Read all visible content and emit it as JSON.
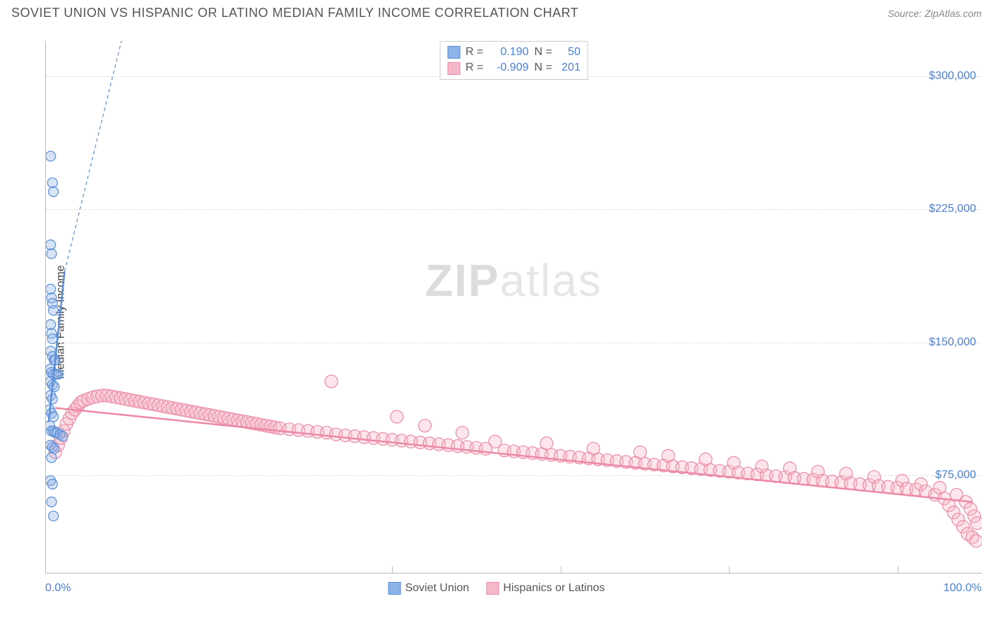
{
  "header": {
    "title": "SOVIET UNION VS HISPANIC OR LATINO MEDIAN FAMILY INCOME CORRELATION CHART",
    "source": "Source: ZipAtlas.com"
  },
  "watermark": {
    "zip": "ZIP",
    "atlas": "atlas"
  },
  "chart": {
    "type": "scatter",
    "ylabel": "Median Family Income",
    "background_color": "#ffffff",
    "grid_color": "#dddddd",
    "axis_color": "#bbbbbb",
    "tick_color": "#4a7fd8",
    "label_color": "#444444",
    "title_color": "#555555",
    "xlim": [
      0,
      100
    ],
    "ylim": [
      20000,
      320000
    ],
    "yticks": [
      75000,
      150000,
      225000,
      300000
    ],
    "ytick_labels": [
      "$75,000",
      "$150,000",
      "$225,000",
      "$300,000"
    ],
    "xticks": [
      0,
      100
    ],
    "xtick_labels": [
      "0.0%",
      "100.0%"
    ],
    "xgrid_positions": [
      37,
      55,
      73,
      91
    ],
    "marker_radius": 9,
    "marker_radius_small": 7,
    "marker_fill_opacity": 0.35,
    "marker_stroke_width": 1.2,
    "trend_line_width": 2.5,
    "trend_dash": "5,4",
    "series": [
      {
        "id": "soviet",
        "label": "Soviet Union",
        "color_fill": "#8db3e8",
        "color_stroke": "#5b8fd6",
        "R": "0.190",
        "N": "50",
        "trend_solid": {
          "x1": 0.3,
          "y1": 105000,
          "x2": 2.0,
          "y2": 190000
        },
        "trend_dash": {
          "x1": 2.0,
          "y1": 190000,
          "x2": 9.0,
          "y2": 340000
        },
        "points": [
          [
            0.5,
            255000
          ],
          [
            0.7,
            240000
          ],
          [
            0.8,
            235000
          ],
          [
            0.5,
            205000
          ],
          [
            0.6,
            200000
          ],
          [
            0.5,
            180000
          ],
          [
            0.6,
            175000
          ],
          [
            0.7,
            172000
          ],
          [
            0.8,
            168000
          ],
          [
            0.5,
            160000
          ],
          [
            0.6,
            155000
          ],
          [
            0.7,
            152000
          ],
          [
            0.5,
            145000
          ],
          [
            0.7,
            142000
          ],
          [
            0.9,
            140000
          ],
          [
            1.0,
            140000
          ],
          [
            0.5,
            135000
          ],
          [
            0.6,
            133000
          ],
          [
            0.8,
            132000
          ],
          [
            1.1,
            132000
          ],
          [
            1.3,
            132000
          ],
          [
            0.5,
            128000
          ],
          [
            0.7,
            126000
          ],
          [
            0.9,
            125000
          ],
          [
            0.5,
            120000
          ],
          [
            0.7,
            118000
          ],
          [
            0.4,
            112000
          ],
          [
            0.6,
            110000
          ],
          [
            0.8,
            108000
          ],
          [
            0.4,
            103000
          ],
          [
            0.6,
            100000
          ],
          [
            0.8,
            100000
          ],
          [
            1.0,
            99000
          ],
          [
            1.2,
            99000
          ],
          [
            1.5,
            98000
          ],
          [
            1.8,
            97000
          ],
          [
            0.5,
            92000
          ],
          [
            0.7,
            91000
          ],
          [
            0.9,
            90000
          ],
          [
            0.6,
            85000
          ],
          [
            0.5,
            72000
          ],
          [
            0.7,
            70000
          ],
          [
            0.6,
            60000
          ],
          [
            0.8,
            52000
          ]
        ]
      },
      {
        "id": "hispanic",
        "label": "Hispanics or Latinos",
        "color_fill": "#f5b8c8",
        "color_stroke": "#ec8aa6",
        "R": "-0.909",
        "N": "201",
        "trend_solid": {
          "x1": 1,
          "y1": 113000,
          "x2": 99,
          "y2": 60000
        },
        "points": [
          [
            1.0,
            88000
          ],
          [
            1.3,
            92000
          ],
          [
            1.6,
            96000
          ],
          [
            1.9,
            100000
          ],
          [
            2.2,
            104000
          ],
          [
            2.5,
            107000
          ],
          [
            2.8,
            110000
          ],
          [
            3.1,
            112000
          ],
          [
            3.4,
            114000
          ],
          [
            3.7,
            116000
          ],
          [
            4.0,
            117000
          ],
          [
            4.5,
            118000
          ],
          [
            5.0,
            119000
          ],
          [
            5.5,
            119500
          ],
          [
            6.0,
            120000
          ],
          [
            6.5,
            120000
          ],
          [
            7.0,
            119500
          ],
          [
            7.5,
            119000
          ],
          [
            8.0,
            118500
          ],
          [
            8.5,
            118000
          ],
          [
            9.0,
            117500
          ],
          [
            9.5,
            117000
          ],
          [
            10.0,
            116500
          ],
          [
            10.5,
            116000
          ],
          [
            11.0,
            115500
          ],
          [
            11.5,
            115000
          ],
          [
            12.0,
            114500
          ],
          [
            12.5,
            114000
          ],
          [
            13.0,
            113500
          ],
          [
            13.5,
            113000
          ],
          [
            14.0,
            112500
          ],
          [
            14.5,
            112000
          ],
          [
            15.0,
            111500
          ],
          [
            15.5,
            111000
          ],
          [
            16.0,
            110500
          ],
          [
            16.5,
            110000
          ],
          [
            17.0,
            109500
          ],
          [
            17.5,
            109000
          ],
          [
            18.0,
            108500
          ],
          [
            18.5,
            108000
          ],
          [
            19.0,
            107500
          ],
          [
            19.5,
            107000
          ],
          [
            20.0,
            106500
          ],
          [
            20.5,
            106000
          ],
          [
            21.0,
            105500
          ],
          [
            21.5,
            105000
          ],
          [
            22.0,
            104500
          ],
          [
            22.5,
            104000
          ],
          [
            23.0,
            103500
          ],
          [
            23.5,
            103000
          ],
          [
            24.0,
            102500
          ],
          [
            24.5,
            102000
          ],
          [
            25.0,
            101500
          ],
          [
            26.0,
            101000
          ],
          [
            27.0,
            100500
          ],
          [
            28.0,
            100000
          ],
          [
            29.0,
            99500
          ],
          [
            30.0,
            99000
          ],
          [
            30.5,
            128000
          ],
          [
            31.0,
            98000
          ],
          [
            32.0,
            97500
          ],
          [
            33.0,
            97000
          ],
          [
            34.0,
            96500
          ],
          [
            35.0,
            96000
          ],
          [
            36.0,
            95500
          ],
          [
            37.0,
            95000
          ],
          [
            37.5,
            108000
          ],
          [
            38.0,
            94500
          ],
          [
            39.0,
            94000
          ],
          [
            40.0,
            93500
          ],
          [
            40.5,
            103000
          ],
          [
            41.0,
            93000
          ],
          [
            42.0,
            92500
          ],
          [
            43.0,
            92000
          ],
          [
            44.0,
            91500
          ],
          [
            44.5,
            99000
          ],
          [
            45.0,
            91000
          ],
          [
            46.0,
            90500
          ],
          [
            47.0,
            90000
          ],
          [
            48.0,
            94000
          ],
          [
            49.0,
            89000
          ],
          [
            50.0,
            88500
          ],
          [
            51.0,
            88000
          ],
          [
            52.0,
            87500
          ],
          [
            53.0,
            87000
          ],
          [
            53.5,
            93000
          ],
          [
            54.0,
            86500
          ],
          [
            55.0,
            86000
          ],
          [
            56.0,
            85500
          ],
          [
            57.0,
            85000
          ],
          [
            58.0,
            84500
          ],
          [
            58.5,
            90000
          ],
          [
            59.0,
            84000
          ],
          [
            60.0,
            83500
          ],
          [
            61.0,
            83000
          ],
          [
            62.0,
            82500
          ],
          [
            63.0,
            82000
          ],
          [
            63.5,
            88000
          ],
          [
            64.0,
            81500
          ],
          [
            65.0,
            81000
          ],
          [
            66.0,
            80500
          ],
          [
            66.5,
            86000
          ],
          [
            67.0,
            80000
          ],
          [
            68.0,
            79500
          ],
          [
            69.0,
            79000
          ],
          [
            70.0,
            78500
          ],
          [
            70.5,
            84000
          ],
          [
            71.0,
            78000
          ],
          [
            72.0,
            77500
          ],
          [
            73.0,
            77000
          ],
          [
            73.5,
            82000
          ],
          [
            74.0,
            76500
          ],
          [
            75.0,
            76000
          ],
          [
            76.0,
            75500
          ],
          [
            76.5,
            80000
          ],
          [
            77.0,
            75000
          ],
          [
            78.0,
            74500
          ],
          [
            79.0,
            74000
          ],
          [
            79.5,
            79000
          ],
          [
            80.0,
            73500
          ],
          [
            81.0,
            73000
          ],
          [
            82.0,
            72500
          ],
          [
            82.5,
            77000
          ],
          [
            83.0,
            72000
          ],
          [
            84.0,
            71500
          ],
          [
            85.0,
            71000
          ],
          [
            85.5,
            76000
          ],
          [
            86.0,
            70500
          ],
          [
            87.0,
            70000
          ],
          [
            88.0,
            69500
          ],
          [
            88.5,
            74000
          ],
          [
            89.0,
            69000
          ],
          [
            90.0,
            68500
          ],
          [
            91.0,
            68000
          ],
          [
            91.5,
            72000
          ],
          [
            92.0,
            67500
          ],
          [
            93.0,
            67000
          ],
          [
            93.5,
            70000
          ],
          [
            94.0,
            66000
          ],
          [
            95.0,
            64000
          ],
          [
            95.5,
            68000
          ],
          [
            96.0,
            62000
          ],
          [
            96.5,
            58000
          ],
          [
            97.0,
            54000
          ],
          [
            97.3,
            64000
          ],
          [
            97.5,
            50000
          ],
          [
            98.0,
            46000
          ],
          [
            98.3,
            60000
          ],
          [
            98.5,
            42000
          ],
          [
            98.8,
            56000
          ],
          [
            99.0,
            40000
          ],
          [
            99.2,
            52000
          ],
          [
            99.4,
            38000
          ],
          [
            99.5,
            48000
          ]
        ]
      }
    ]
  },
  "legend_top": {
    "r_label": "R =",
    "n_label": "N ="
  },
  "legend_bottom": {
    "items": [
      "Soviet Union",
      "Hispanics or Latinos"
    ]
  }
}
